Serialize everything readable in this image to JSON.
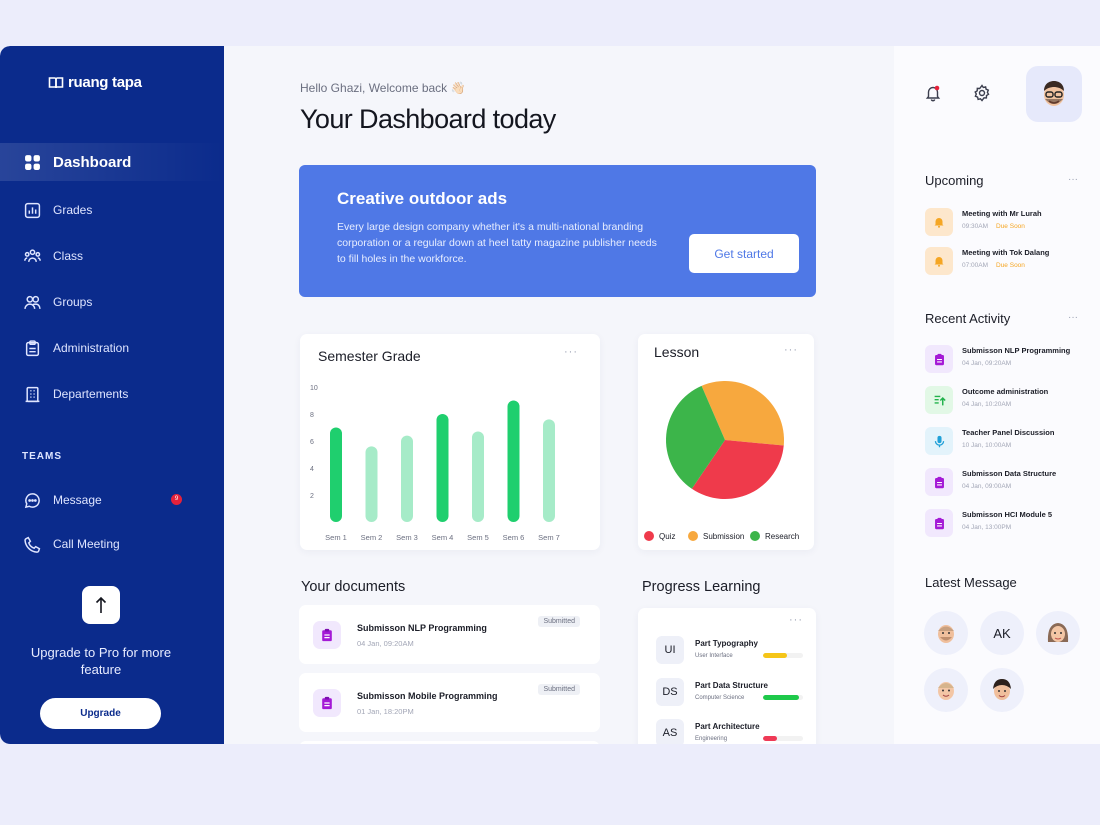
{
  "brand": {
    "name": "ruang tapa"
  },
  "sidebar": {
    "items": [
      {
        "label": "Dashboard",
        "icon": "grid-icon",
        "active": true
      },
      {
        "label": "Grades",
        "icon": "chart-icon"
      },
      {
        "label": "Class",
        "icon": "class-icon"
      },
      {
        "label": "Groups",
        "icon": "groups-icon"
      },
      {
        "label": "Administration",
        "icon": "clipboard-icon"
      },
      {
        "label": "Departements",
        "icon": "building-icon"
      }
    ],
    "teams_label": "TEAMS",
    "teams": [
      {
        "label": "Message",
        "icon": "chat-icon",
        "badge": "9"
      },
      {
        "label": "Call Meeting",
        "icon": "phone-icon"
      }
    ],
    "upgrade_text": "Upgrade to Pro for more feature",
    "upgrade_button": "Upgrade"
  },
  "header": {
    "greeting": "Hello Ghazi, Welcome back 👋🏻",
    "title": "Your Dashboard today"
  },
  "banner": {
    "title": "Creative outdoor ads",
    "text": "Every large design company whether it's a multi-national branding corporation or a regular down at heel tatty magazine publisher needs to fill holes in the workforce.",
    "button": "Get started",
    "color": "#4f78e6"
  },
  "semester_grade": {
    "title": "Semester Grade",
    "menu": "···"
  },
  "chart_data": [
    {
      "type": "bar",
      "title": "Semester Grade",
      "categories": [
        "Sem 1",
        "Sem 2",
        "Sem 3",
        "Sem 4",
        "Sem 5",
        "Sem 6",
        "Sem 7"
      ],
      "values": [
        7,
        5.6,
        6.4,
        8,
        6.7,
        9,
        7.6
      ],
      "ylim": [
        0,
        10
      ],
      "yticks": [
        "10",
        "8",
        "6",
        "4",
        "2"
      ],
      "colors": [
        "#1fcf6e",
        "#a6ebc8",
        "#a6ebc8",
        "#1fcf6e",
        "#a6ebc8",
        "#1fcf6e",
        "#a6ebc8"
      ]
    },
    {
      "type": "pie",
      "title": "Lesson",
      "series": [
        {
          "name": "Quiz",
          "value": 33,
          "color": "#ef3a4b"
        },
        {
          "name": "Submission",
          "value": 33,
          "color": "#f7a83e"
        },
        {
          "name": "Research",
          "value": 34,
          "color": "#3cb54a"
        }
      ],
      "legend": "bottom"
    }
  ],
  "lesson": {
    "title": "Lesson",
    "menu": "···"
  },
  "documents": {
    "title": "Your documents",
    "items": [
      {
        "title": "Submisson NLP Programming",
        "date": "04 Jan, 09:20AM",
        "status": "Submitted"
      },
      {
        "title": "Submisson Mobile Programming",
        "date": "01 Jan, 18:20PM",
        "status": "Submitted"
      }
    ]
  },
  "progress": {
    "title": "Progress Learning",
    "menu": "···",
    "items": [
      {
        "abbr": "UI",
        "name": "Part Typography",
        "sub": "User Interface",
        "value": 0.6,
        "color": "#f5c518"
      },
      {
        "abbr": "DS",
        "name": "Part Data Structure",
        "sub": "Computer Science",
        "value": 0.9,
        "color": "#1ec94a"
      },
      {
        "abbr": "AS",
        "name": "Part Architecture",
        "sub": "Engineering",
        "value": 0.35,
        "color": "#ef3a56"
      }
    ]
  },
  "right": {
    "upcoming_title": "Upcoming",
    "upcoming": [
      {
        "title": "Meeting with Mr Lurah",
        "time": "09:30AM",
        "due": "Due Soon"
      },
      {
        "title": "Meeting with Tok Dalang",
        "time": "07:00AM",
        "due": "Due Soon"
      }
    ],
    "activity_title": "Recent Activity",
    "activity": [
      {
        "title": "Submisson NLP Programming",
        "date": "04 Jan, 09:20AM",
        "icon": "clipboard-icon",
        "bg": "#f1e8fd",
        "fg": "#a41ad6"
      },
      {
        "title": "Outcome administration",
        "date": "04 Jan, 10:20AM",
        "icon": "upload-list-icon",
        "bg": "#e2f8e6",
        "fg": "#22b24c"
      },
      {
        "title": "Teacher Panel Discussion",
        "date": "10 Jan, 10:00AM",
        "icon": "microphone-icon",
        "bg": "#e3f3fb",
        "fg": "#1fa0d8"
      },
      {
        "title": "Submisson Data Structure",
        "date": "04 Jan, 09:00AM",
        "icon": "clipboard-icon",
        "bg": "#f1e8fd",
        "fg": "#a41ad6"
      },
      {
        "title": "Submisson HCI Module 5",
        "date": "04 Jan, 13:00PM",
        "icon": "clipboard-icon",
        "bg": "#f1e8fd",
        "fg": "#a41ad6"
      }
    ],
    "message_title": "Latest Message",
    "messages": [
      "",
      "AK",
      "",
      "",
      ""
    ]
  }
}
